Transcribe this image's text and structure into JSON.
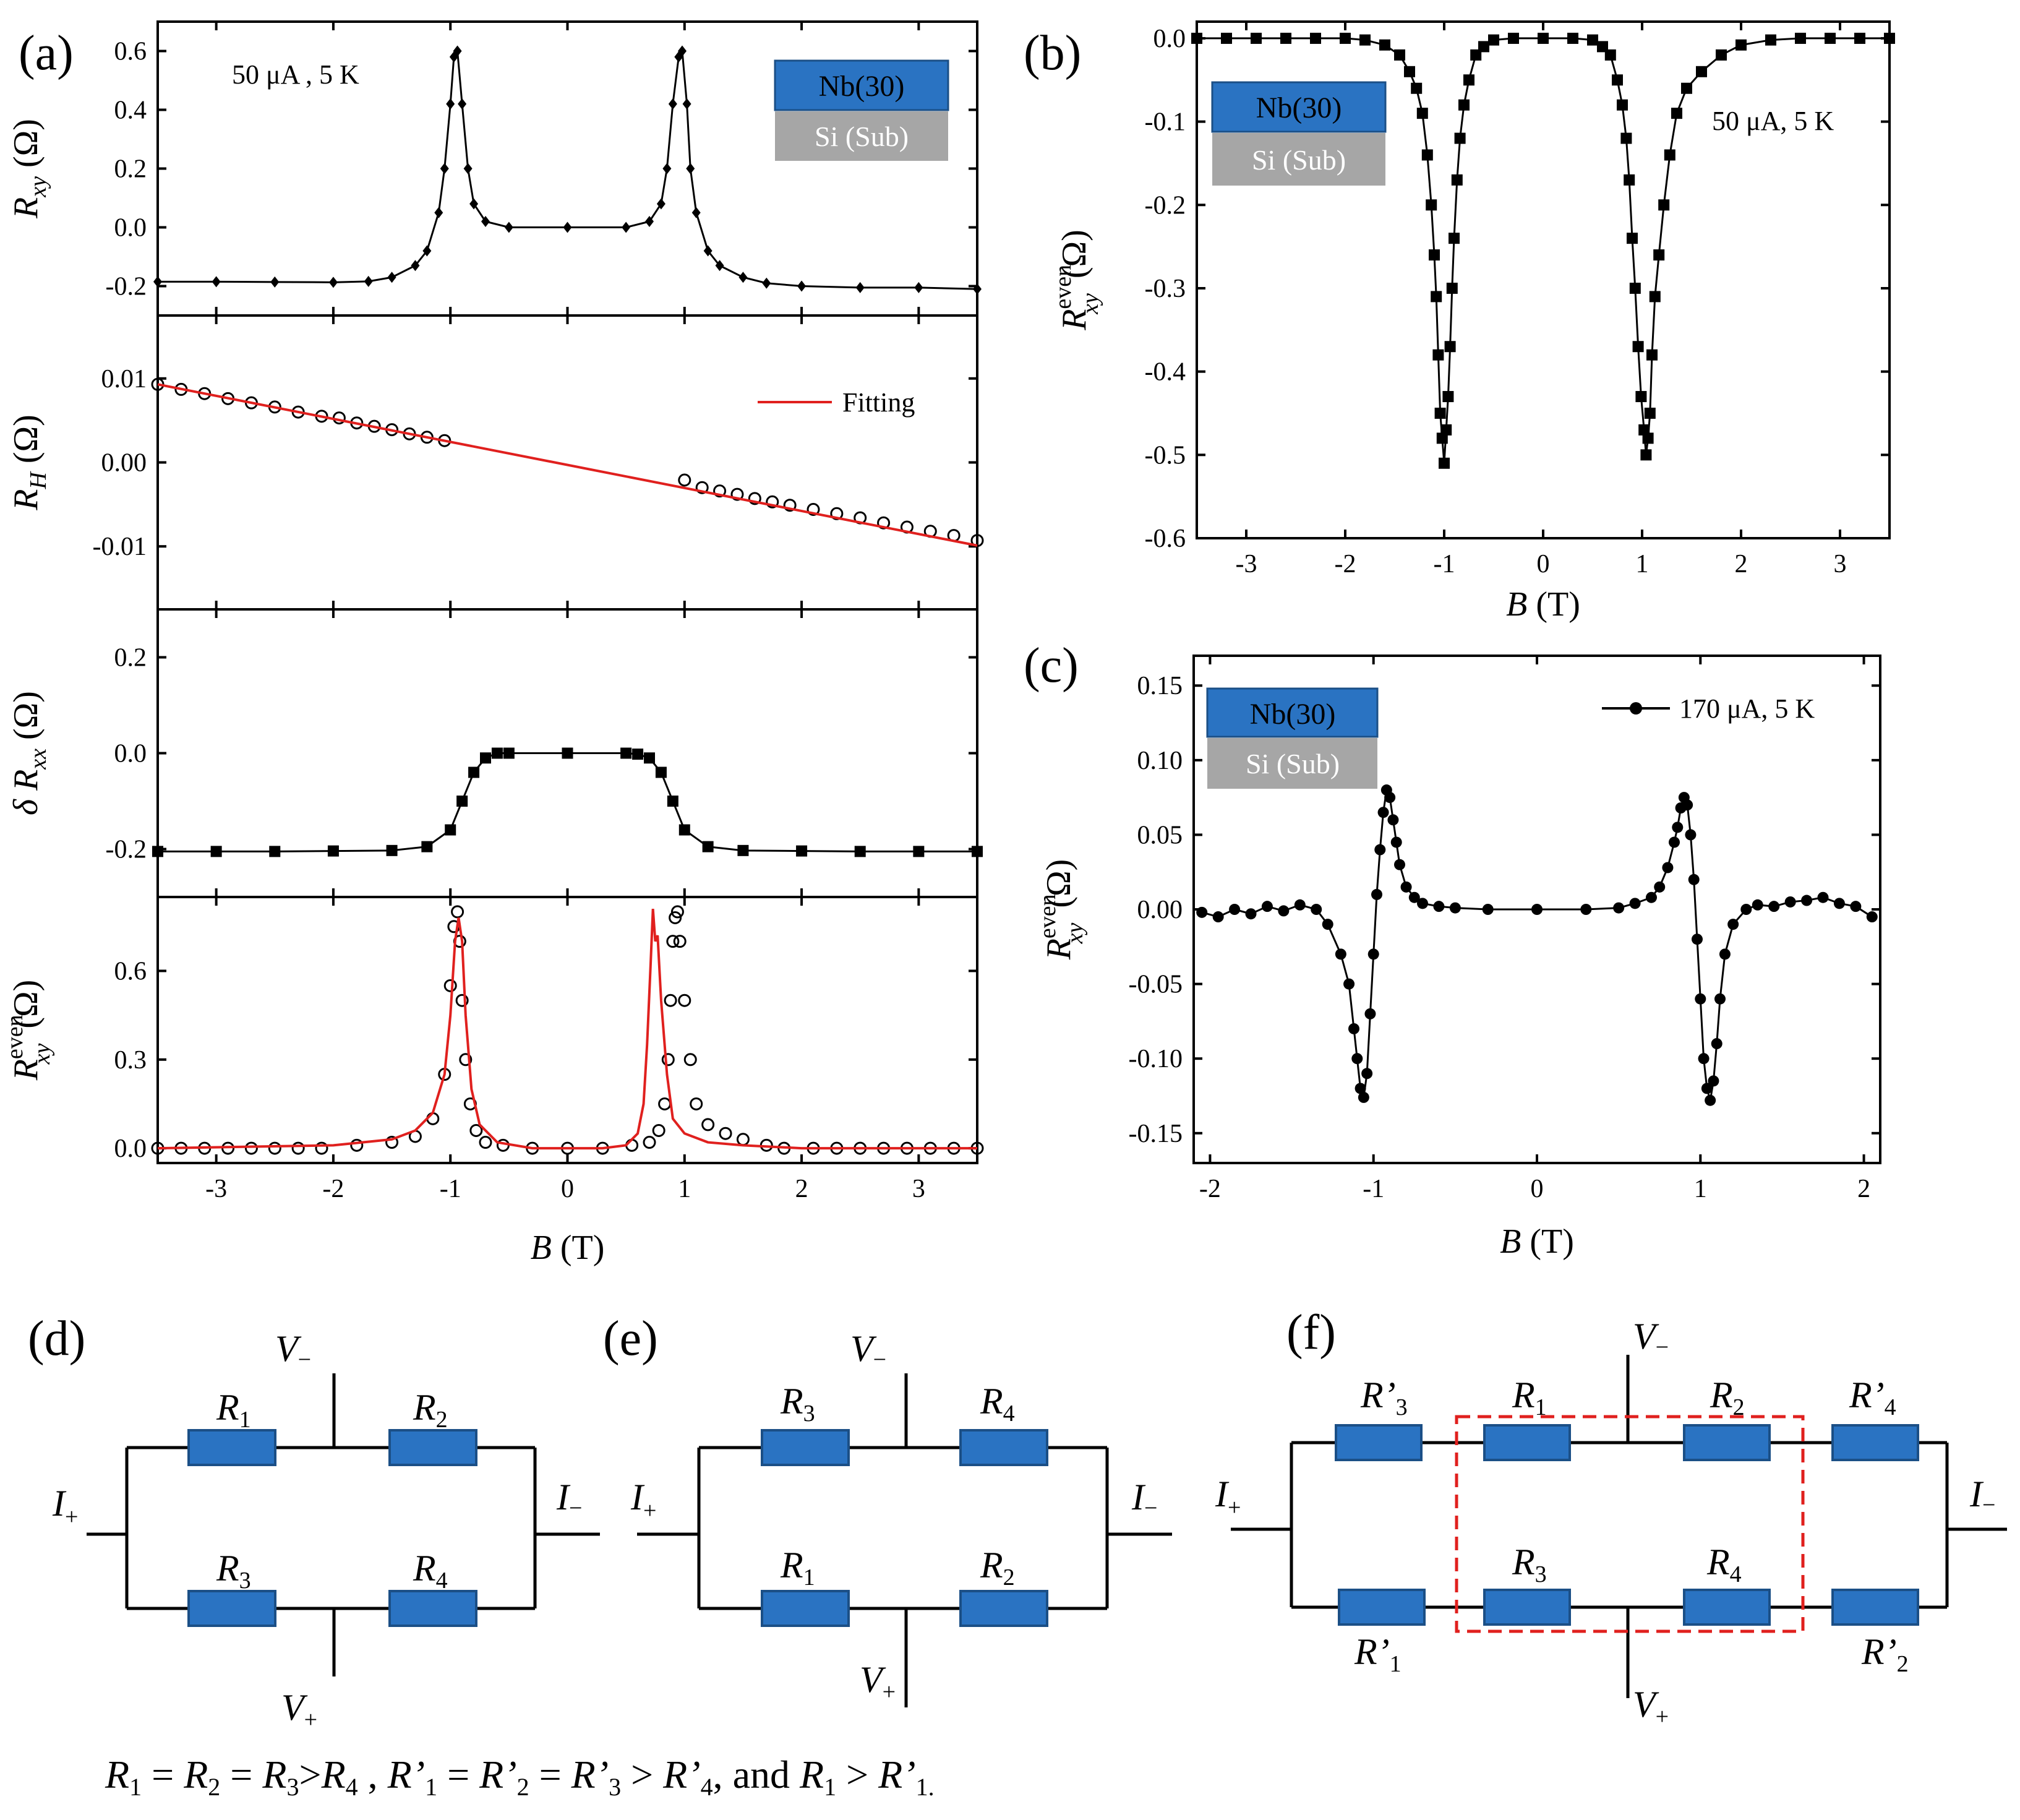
{
  "colors": {
    "nb_box": "#2a73c2",
    "si_box": "#a6a6a6",
    "fit": "#e0201e",
    "data": "#000000"
  },
  "panel_labels": {
    "a": "(a)",
    "b": "(b)",
    "c": "(c)",
    "d": "(d)",
    "e": "(e)",
    "f": "(f)"
  },
  "chart_data": [
    {
      "id": "a1",
      "type": "line",
      "panel": "(a)",
      "ylabel_main": "R",
      "ylabel_sub": "xy",
      "ylabel_unit": "(Ω)",
      "xlim": [
        -3.5,
        3.5
      ],
      "ylim": [
        -0.3,
        0.7
      ],
      "xticks": [
        -3,
        -2,
        -1,
        0,
        1,
        2,
        3
      ],
      "yticks": [
        -0.2,
        0.0,
        0.2,
        0.4,
        0.6
      ],
      "ytick_labels": [
        "-0.2",
        "0.0",
        "0.2",
        "0.4",
        "0.6"
      ],
      "annotation": "50 μA , 5 K",
      "stack": {
        "top": "Nb(30)",
        "bottom": "Si (Sub)"
      },
      "series": [
        {
          "name": "Rxy",
          "marker": "filled-diamond",
          "x": [
            -3.5,
            -3.0,
            -2.5,
            -2.0,
            -1.7,
            -1.5,
            -1.3,
            -1.2,
            -1.1,
            -1.05,
            -1.0,
            -0.97,
            -0.94,
            -0.9,
            -0.85,
            -0.8,
            -0.7,
            -0.5,
            0.0,
            0.5,
            0.7,
            0.8,
            0.85,
            0.9,
            0.95,
            0.98,
            1.02,
            1.05,
            1.1,
            1.2,
            1.3,
            1.5,
            1.7,
            2.0,
            2.5,
            3.0,
            3.5
          ],
          "y": [
            -0.185,
            -0.185,
            -0.186,
            -0.187,
            -0.184,
            -0.17,
            -0.13,
            -0.08,
            0.05,
            0.2,
            0.42,
            0.58,
            0.6,
            0.42,
            0.2,
            0.08,
            0.02,
            0.0,
            0.0,
            0.0,
            0.02,
            0.08,
            0.2,
            0.42,
            0.58,
            0.6,
            0.42,
            0.2,
            0.05,
            -0.08,
            -0.13,
            -0.17,
            -0.19,
            -0.2,
            -0.205,
            -0.205,
            -0.21
          ]
        }
      ]
    },
    {
      "id": "a2",
      "type": "scatter",
      "panel": "(a)",
      "ylabel_main": "R",
      "ylabel_sub": "H",
      "ylabel_unit": "(Ω)",
      "xlim": [
        -3.5,
        3.5
      ],
      "ylim": [
        -0.0175,
        0.0175
      ],
      "xticks": [
        -3,
        -2,
        -1,
        0,
        1,
        2,
        3
      ],
      "yticks": [
        -0.01,
        0.0,
        0.01
      ],
      "ytick_labels": [
        "-0.01",
        "0.00",
        "0.01"
      ],
      "legend": "Fitting",
      "series": [
        {
          "name": "RH",
          "marker": "open-circle",
          "x": [
            -3.5,
            -3.3,
            -3.1,
            -2.9,
            -2.7,
            -2.5,
            -2.3,
            -2.1,
            -1.95,
            -1.8,
            -1.65,
            -1.5,
            -1.35,
            -1.2,
            -1.05,
            1.0,
            1.15,
            1.3,
            1.45,
            1.6,
            1.75,
            1.9,
            2.1,
            2.3,
            2.5,
            2.7,
            2.9,
            3.1,
            3.3,
            3.5
          ],
          "y": [
            0.0093,
            0.0087,
            0.0082,
            0.0076,
            0.0071,
            0.0066,
            0.006,
            0.0055,
            0.0053,
            0.0047,
            0.0043,
            0.0039,
            0.0034,
            0.003,
            0.0026,
            -0.0021,
            -0.003,
            -0.0034,
            -0.0038,
            -0.0043,
            -0.0047,
            -0.0051,
            -0.0056,
            -0.0061,
            -0.0066,
            -0.0072,
            -0.0077,
            -0.0082,
            -0.0087,
            -0.0093
          ]
        },
        {
          "name": "Fitting",
          "marker": "line",
          "x": [
            -3.5,
            3.5
          ],
          "y": [
            0.0093,
            -0.0099
          ]
        }
      ]
    },
    {
      "id": "a3",
      "type": "line",
      "panel": "(a)",
      "ylabel_main": "δ R",
      "ylabel_sub": "xx",
      "ylabel_unit": "(Ω)",
      "xlim": [
        -3.5,
        3.5
      ],
      "ylim": [
        -0.3,
        0.3
      ],
      "xticks": [
        -3,
        -2,
        -1,
        0,
        1,
        2,
        3
      ],
      "yticks": [
        -0.2,
        0.0,
        0.2
      ],
      "ytick_labels": [
        "-0.2",
        "0.0",
        "0.2"
      ],
      "series": [
        {
          "name": "dRxx",
          "marker": "filled-square",
          "x": [
            -3.5,
            -3.0,
            -2.5,
            -2.0,
            -1.5,
            -1.2,
            -1.0,
            -0.9,
            -0.8,
            -0.7,
            -0.6,
            -0.5,
            0.0,
            0.5,
            0.6,
            0.7,
            0.8,
            0.9,
            1.0,
            1.2,
            1.5,
            2.0,
            2.5,
            3.0,
            3.5
          ],
          "y": [
            -0.205,
            -0.205,
            -0.205,
            -0.204,
            -0.203,
            -0.195,
            -0.16,
            -0.1,
            -0.04,
            -0.01,
            0.0,
            0.0,
            0.0,
            0.0,
            -0.002,
            -0.01,
            -0.04,
            -0.1,
            -0.16,
            -0.195,
            -0.203,
            -0.204,
            -0.205,
            -0.205,
            -0.205
          ]
        }
      ]
    },
    {
      "id": "a4",
      "type": "scatter",
      "panel": "(a)",
      "ylabel_main": "R",
      "ylabel_sub": "xy",
      "ylabel_sup": "even",
      "ylabel_unit": "(Ω)",
      "xlabel": "B",
      "xlabel_unit": "(T)",
      "xlim": [
        -3.5,
        3.5
      ],
      "ylim": [
        -0.05,
        0.85
      ],
      "xticks": [
        -3,
        -2,
        -1,
        0,
        1,
        2,
        3
      ],
      "xtick_labels": [
        "-3",
        "-2",
        "-1",
        "0",
        "1",
        "2",
        "3"
      ],
      "yticks": [
        0.0,
        0.3,
        0.6
      ],
      "ytick_labels": [
        "0.0",
        "0.3",
        "0.6"
      ],
      "series": [
        {
          "name": "data",
          "marker": "open-circle",
          "x": [
            -3.5,
            -3.3,
            -3.1,
            -2.9,
            -2.7,
            -2.5,
            -2.3,
            -2.1,
            -1.8,
            -1.5,
            -1.3,
            -1.15,
            -1.05,
            -1.0,
            -0.97,
            -0.94,
            -0.92,
            -0.9,
            -0.87,
            -0.83,
            -0.78,
            -0.7,
            -0.55,
            -0.3,
            0.0,
            0.3,
            0.55,
            0.7,
            0.78,
            0.83,
            0.86,
            0.88,
            0.9,
            0.92,
            0.94,
            0.96,
            1.0,
            1.05,
            1.1,
            1.2,
            1.35,
            1.5,
            1.7,
            1.85,
            2.1,
            2.3,
            2.5,
            2.7,
            2.9,
            3.1,
            3.3,
            3.5
          ],
          "y": [
            0.0,
            0.0,
            0.0,
            0.0,
            0.0,
            0.0,
            0.0,
            0.0,
            0.01,
            0.02,
            0.04,
            0.1,
            0.25,
            0.55,
            0.75,
            0.8,
            0.7,
            0.5,
            0.3,
            0.15,
            0.06,
            0.02,
            0.01,
            0.0,
            0.0,
            0.0,
            0.01,
            0.02,
            0.06,
            0.15,
            0.3,
            0.5,
            0.7,
            0.78,
            0.8,
            0.7,
            0.5,
            0.3,
            0.15,
            0.08,
            0.05,
            0.03,
            0.01,
            0.0,
            0.0,
            0.0,
            0.0,
            0.0,
            0.0,
            0.0,
            0.0,
            0.0
          ]
        },
        {
          "name": "fit",
          "marker": "line",
          "x": [
            -3.5,
            -2.0,
            -1.5,
            -1.3,
            -1.15,
            -1.05,
            -1.0,
            -0.96,
            -0.93,
            -0.9,
            -0.87,
            -0.82,
            -0.75,
            -0.6,
            -0.3,
            0.0,
            0.3,
            0.5,
            0.6,
            0.65,
            0.68,
            0.71,
            0.73,
            0.75,
            0.77,
            0.8,
            0.85,
            0.9,
            1.0,
            1.2,
            1.5,
            2.0,
            3.5
          ],
          "y": [
            0.0,
            0.01,
            0.03,
            0.06,
            0.12,
            0.25,
            0.45,
            0.7,
            0.78,
            0.7,
            0.45,
            0.2,
            0.08,
            0.02,
            0.0,
            0.0,
            0.0,
            0.01,
            0.05,
            0.15,
            0.35,
            0.62,
            0.81,
            0.7,
            0.72,
            0.5,
            0.25,
            0.1,
            0.05,
            0.02,
            0.01,
            0.0,
            0.0
          ]
        }
      ]
    },
    {
      "id": "b",
      "type": "scatter",
      "panel": "(b)",
      "ylabel_main": "R",
      "ylabel_sub": "xy",
      "ylabel_sup": "even",
      "ylabel_unit": "(Ω)",
      "xlabel": "B",
      "xlabel_unit": "(T)",
      "xlim": [
        -3.5,
        3.5
      ],
      "ylim": [
        -0.6,
        0.02
      ],
      "xticks": [
        -3,
        -2,
        -1,
        0,
        1,
        2,
        3
      ],
      "xtick_labels": [
        "-3",
        "-2",
        "-1",
        "0",
        "1",
        "2",
        "3"
      ],
      "yticks": [
        -0.6,
        -0.5,
        -0.4,
        -0.3,
        -0.2,
        -0.1,
        0.0
      ],
      "ytick_labels": [
        "-0.6",
        "-0.5",
        "-0.4",
        "-0.3",
        "-0.2",
        "-0.1",
        "0.0"
      ],
      "annotation": "50 μA, 5 K",
      "stack": {
        "top": "Nb(30)",
        "bottom": "Si (Sub)"
      },
      "series": [
        {
          "name": "Rxy_even",
          "marker": "filled-square",
          "x": [
            -3.5,
            -3.2,
            -2.9,
            -2.6,
            -2.3,
            -2.0,
            -1.8,
            -1.6,
            -1.45,
            -1.35,
            -1.28,
            -1.22,
            -1.17,
            -1.13,
            -1.1,
            -1.08,
            -1.06,
            -1.04,
            -1.02,
            -1.0,
            -0.98,
            -0.96,
            -0.94,
            -0.92,
            -0.9,
            -0.87,
            -0.84,
            -0.8,
            -0.75,
            -0.68,
            -0.6,
            -0.5,
            -0.3,
            0.0,
            0.3,
            0.5,
            0.6,
            0.68,
            0.75,
            0.8,
            0.84,
            0.87,
            0.9,
            0.93,
            0.96,
            0.99,
            1.02,
            1.04,
            1.06,
            1.08,
            1.1,
            1.13,
            1.17,
            1.22,
            1.28,
            1.35,
            1.45,
            1.6,
            1.8,
            2.0,
            2.3,
            2.6,
            2.9,
            3.2,
            3.5
          ],
          "y": [
            0.0,
            0.0,
            0.0,
            0.0,
            0.0,
            0.0,
            -0.002,
            -0.008,
            -0.02,
            -0.04,
            -0.06,
            -0.09,
            -0.14,
            -0.2,
            -0.26,
            -0.31,
            -0.38,
            -0.45,
            -0.48,
            -0.51,
            -0.47,
            -0.43,
            -0.37,
            -0.3,
            -0.24,
            -0.17,
            -0.12,
            -0.08,
            -0.05,
            -0.02,
            -0.01,
            -0.002,
            0.0,
            0.0,
            0.0,
            -0.002,
            -0.01,
            -0.02,
            -0.05,
            -0.08,
            -0.12,
            -0.17,
            -0.24,
            -0.3,
            -0.37,
            -0.43,
            -0.47,
            -0.5,
            -0.48,
            -0.45,
            -0.38,
            -0.31,
            -0.26,
            -0.2,
            -0.14,
            -0.09,
            -0.06,
            -0.04,
            -0.02,
            -0.008,
            -0.002,
            0.0,
            0.0,
            0.0,
            0.0
          ]
        }
      ]
    },
    {
      "id": "c",
      "type": "line",
      "panel": "(c)",
      "ylabel_main": "R",
      "ylabel_sub": "xy",
      "ylabel_sup": "even",
      "ylabel_unit": "(Ω)",
      "xlabel": "B",
      "xlabel_unit": "(T)",
      "xlim": [
        -2.1,
        2.1
      ],
      "ylim": [
        -0.17,
        0.17
      ],
      "xticks": [
        -2,
        -1,
        0,
        1,
        2
      ],
      "xtick_labels": [
        "-2",
        "-1",
        "0",
        "1",
        "2"
      ],
      "yticks": [
        -0.15,
        -0.1,
        -0.05,
        0.0,
        0.05,
        0.1,
        0.15
      ],
      "ytick_labels": [
        "-0.15",
        "-0.10",
        "-0.05",
        "0.00",
        "0.05",
        "0.10",
        "0.15"
      ],
      "legend": "170 μA, 5 K",
      "stack": {
        "top": "Nb(30)",
        "bottom": "Si (Sub)"
      },
      "series": [
        {
          "name": "Rxy_even",
          "marker": "filled-circle",
          "x": [
            -2.05,
            -1.95,
            -1.85,
            -1.75,
            -1.65,
            -1.55,
            -1.45,
            -1.35,
            -1.28,
            -1.2,
            -1.15,
            -1.12,
            -1.1,
            -1.08,
            -1.06,
            -1.04,
            -1.02,
            -1.0,
            -0.98,
            -0.96,
            -0.94,
            -0.92,
            -0.9,
            -0.88,
            -0.86,
            -0.84,
            -0.8,
            -0.75,
            -0.7,
            -0.6,
            -0.5,
            -0.3,
            0.0,
            0.3,
            0.5,
            0.6,
            0.7,
            0.75,
            0.8,
            0.84,
            0.86,
            0.88,
            0.9,
            0.92,
            0.94,
            0.96,
            0.98,
            1.0,
            1.02,
            1.04,
            1.06,
            1.08,
            1.1,
            1.12,
            1.15,
            1.2,
            1.28,
            1.35,
            1.45,
            1.55,
            1.65,
            1.75,
            1.85,
            1.95,
            2.05
          ],
          "y": [
            -0.002,
            -0.005,
            0.0,
            -0.003,
            0.002,
            -0.001,
            0.003,
            0.0,
            -0.01,
            -0.03,
            -0.05,
            -0.08,
            -0.1,
            -0.12,
            -0.126,
            -0.11,
            -0.07,
            -0.03,
            0.01,
            0.04,
            0.065,
            0.08,
            0.075,
            0.06,
            0.045,
            0.03,
            0.015,
            0.008,
            0.004,
            0.002,
            0.001,
            0.0,
            0.0,
            0.0,
            0.001,
            0.004,
            0.008,
            0.015,
            0.028,
            0.045,
            0.055,
            0.068,
            0.075,
            0.07,
            0.05,
            0.02,
            -0.02,
            -0.06,
            -0.1,
            -0.12,
            -0.128,
            -0.115,
            -0.09,
            -0.06,
            -0.03,
            -0.01,
            0.0,
            0.003,
            0.002,
            0.005,
            0.006,
            0.008,
            0.004,
            0.002,
            -0.005
          ]
        }
      ]
    }
  ],
  "circuits": {
    "d": {
      "label": "(d)",
      "top_left": "R",
      "top_left_sub": "1",
      "top_right": "R",
      "top_right_sub": "2",
      "bottom_left": "R",
      "bottom_left_sub": "3",
      "bottom_right": "R",
      "bottom_right_sub": "4",
      "v_top": "V",
      "v_top_sub": "−",
      "v_bottom": "V",
      "v_bottom_sub": "+",
      "i_left": "I",
      "i_left_sub": "+",
      "i_right": "I",
      "i_right_sub": "−"
    },
    "e": {
      "label": "(e)",
      "top_left": "R",
      "top_left_sub": "3",
      "top_right": "R",
      "top_right_sub": "4",
      "bottom_left": "R",
      "bottom_left_sub": "1",
      "bottom_right": "R",
      "bottom_right_sub": "2",
      "v_top": "V",
      "v_top_sub": "−",
      "v_bottom": "V",
      "v_bottom_sub": "+",
      "i_left": "I",
      "i_left_sub": "+",
      "i_right": "I",
      "i_right_sub": "−"
    },
    "f": {
      "label": "(f)",
      "top": [
        {
          "main": "R’",
          "sub": "3"
        },
        {
          "main": "R",
          "sub": "1"
        },
        {
          "main": "R",
          "sub": "2"
        },
        {
          "main": "R’",
          "sub": "4"
        }
      ],
      "bottom": [
        {
          "main": "R’",
          "sub": "1"
        },
        {
          "main": "R",
          "sub": "3"
        },
        {
          "main": "R",
          "sub": "4"
        },
        {
          "main": "R’",
          "sub": "2"
        }
      ],
      "v_top": "V",
      "v_top_sub": "−",
      "v_bottom": "V",
      "v_bottom_sub": "+",
      "i_left": "I",
      "i_left_sub": "+",
      "i_right": "I",
      "i_right_sub": "−"
    }
  },
  "caption": {
    "r1": "R",
    "s1": "1",
    "eq1": " = ",
    "r2": "R",
    "s2": "2",
    "eq2": " = ",
    "r3": "R",
    "s3": "3",
    "gt1": ">",
    "r4": "R",
    "s4": "4",
    "c1": " , ",
    "rp1": "R’",
    "sp1": "1",
    "eq3": " = ",
    "rp2": "R’",
    "sp2": "2",
    "eq4": " = ",
    "rp3": "R’",
    "sp3": "3",
    "gt2": " > ",
    "rp4": "R’",
    "sp4": "4",
    "and": ",  and  ",
    "r5": "R",
    "s5": "1",
    "gt3": " > ",
    "rp5": "R’",
    "sp5": "1.",
    "end": ""
  }
}
